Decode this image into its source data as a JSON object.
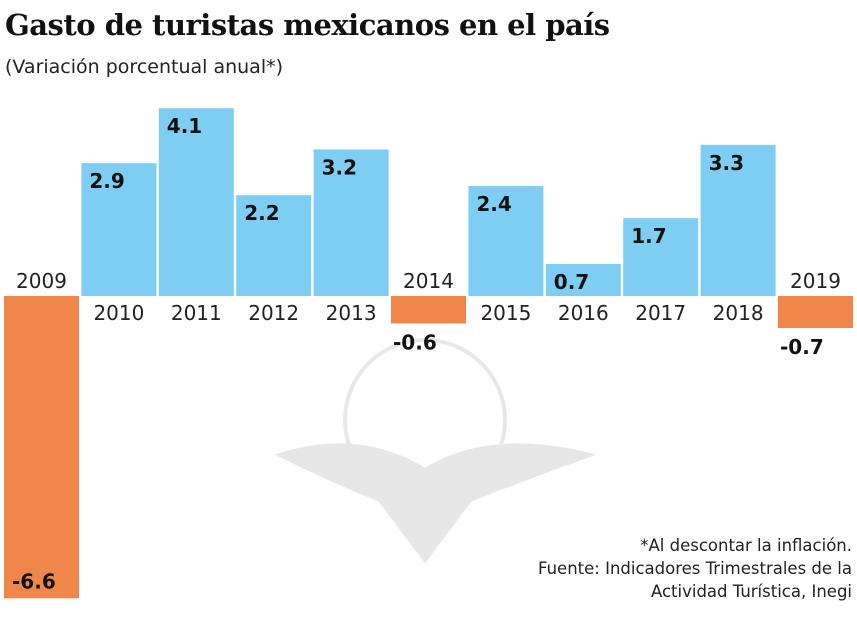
{
  "chart_data": {
    "type": "bar",
    "title": "Gasto de turistas mexicanos en el país",
    "subtitle": "(Variación porcentual anual*)",
    "categories": [
      "2009",
      "2010",
      "2011",
      "2012",
      "2013",
      "2014",
      "2015",
      "2016",
      "2017",
      "2018",
      "2019"
    ],
    "values": [
      -6.6,
      2.9,
      4.1,
      2.2,
      3.2,
      -0.6,
      2.4,
      0.7,
      1.7,
      3.3,
      -0.7
    ],
    "data_labels": [
      "-6.6",
      "2.9",
      "4.1",
      "2.2",
      "3.2",
      "-0.6",
      "2.4",
      "0.7",
      "1.7",
      "3.3",
      "-0.7"
    ],
    "colors": {
      "positive": "#7ECEF4",
      "negative": "#F0874A"
    },
    "grid": false,
    "legend": "none"
  },
  "notes": {
    "footnote": "*Al descontar la inflación.",
    "source_line1": "Fuente: Indicadores Trimestrales de la",
    "source_line2": "Actividad Turística, Inegi"
  },
  "watermark": "eagle-globe-logo"
}
